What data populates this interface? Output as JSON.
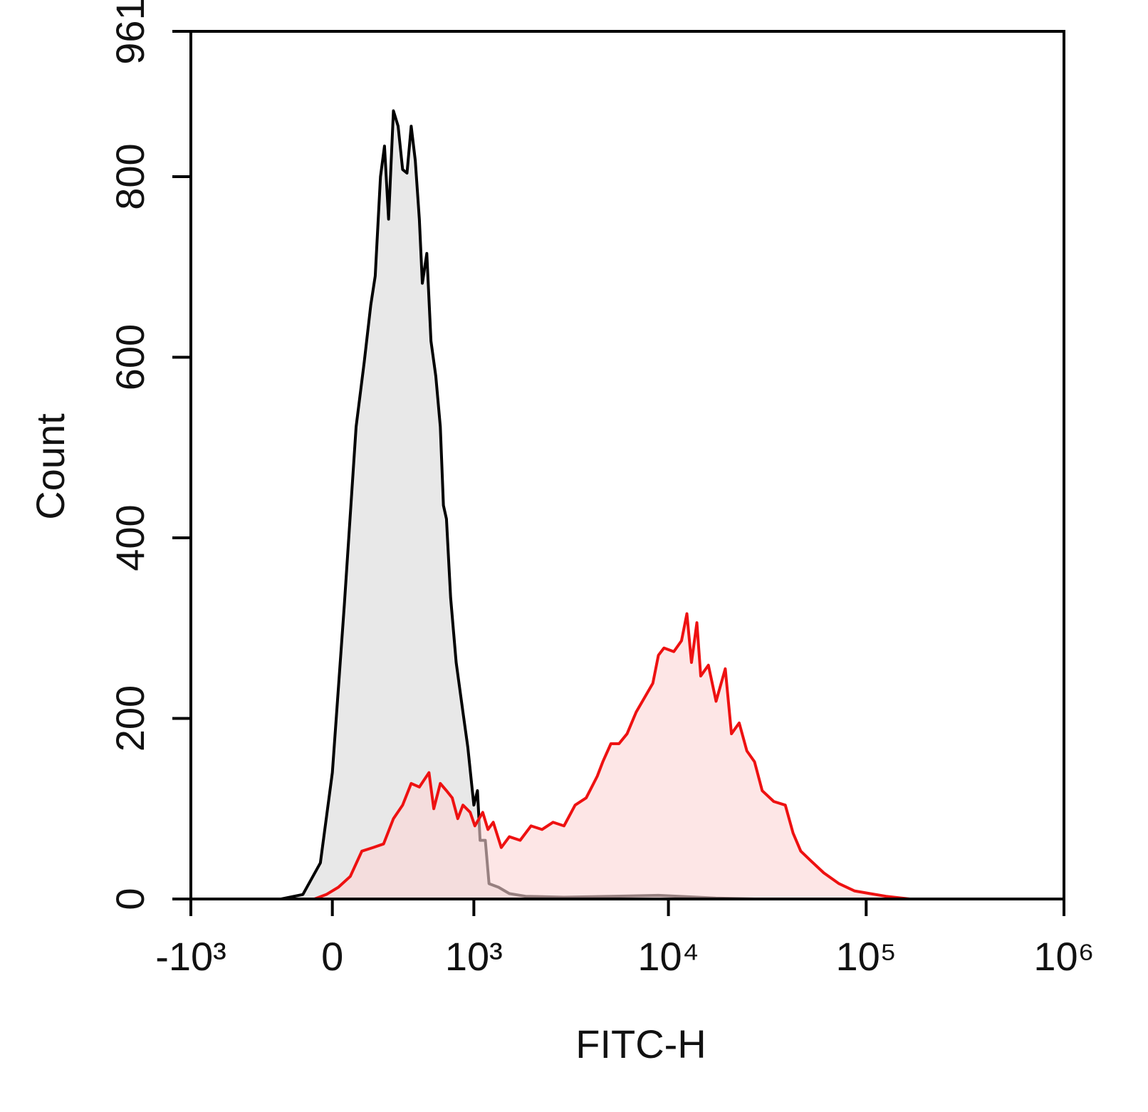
{
  "chart_data": {
    "type": "histogram-overlay",
    "xlabel": "FITC-H",
    "ylabel": "Count",
    "xscale": "biexponential",
    "xlim": [
      -1000,
      1000000
    ],
    "xticks": [
      {
        "value": -1000,
        "label": "-10³"
      },
      0,
      {
        "value": 1000,
        "label": "10³"
      },
      {
        "value": 10000,
        "label": "10⁴"
      },
      {
        "value": 100000,
        "label": "10⁵"
      },
      {
        "value": 1000000,
        "label": "10⁶"
      }
    ],
    "ylim": [
      0,
      961
    ],
    "yticks": [
      0,
      200,
      400,
      600,
      800,
      961
    ],
    "series": [
      {
        "color": "#000000",
        "fill": "#e8e8e8",
        "x": [
          -1000,
          -253,
          -140,
          -56,
          0,
          56,
          112,
          152,
          185,
          208,
          236,
          258,
          281,
          309,
          337,
          365,
          393,
          421,
          449,
          478,
          500,
          534,
          567,
          607,
          646,
          674,
          702,
          742,
          798,
          871,
          927,
          972,
          1000,
          1046,
          1081,
          1153,
          1207,
          1356,
          1544,
          1876,
          2950,
          8900,
          17400,
          27300,
          1000000
        ],
        "values": [
          0,
          0,
          5,
          40,
          140,
          326,
          523,
          595,
          658,
          690,
          800,
          834,
          753,
          873,
          856,
          808,
          804,
          856,
          818,
          753,
          682,
          715,
          618,
          579,
          523,
          436,
          421,
          334,
          262,
          207,
          168,
          128,
          104,
          120,
          65,
          65,
          17,
          13,
          6,
          3,
          2,
          4,
          1,
          0,
          0
        ]
      },
      {
        "color": "#ee1111",
        "fill": "#fbd6d6",
        "x": [
          -1000,
          -84,
          -28,
          28,
          84,
          140,
          197,
          253,
          309,
          365,
          421,
          478,
          551,
          590,
          646,
          702,
          758,
          815,
          871,
          955,
          1013,
          1117,
          1191,
          1271,
          1401,
          1544,
          1758,
          2002,
          2279,
          2595,
          2954,
          3364,
          3830,
          4360,
          4652,
          5112,
          5619,
          6175,
          6866,
          7568,
          8340,
          8900,
          9495,
          10648,
          11645,
          12400,
          13080,
          13930,
          14570,
          15930,
          17420,
          19390,
          20840,
          22800,
          24930,
          27260,
          29800,
          34100,
          39000,
          42700,
          46700,
          53300,
          61000,
          72900,
          87200,
          104400,
          126000,
          166000,
          1000000
        ],
        "values": [
          0,
          0,
          5,
          13,
          25,
          53,
          57,
          61,
          89,
          104,
          128,
          124,
          140,
          100,
          128,
          120,
          112,
          89,
          104,
          96,
          81,
          96,
          77,
          85,
          57,
          69,
          65,
          81,
          77,
          85,
          81,
          104,
          112,
          136,
          152,
          172,
          172,
          183,
          207,
          223,
          239,
          270,
          278,
          274,
          286,
          316,
          262,
          306,
          247,
          259,
          219,
          255,
          183,
          195,
          164,
          152,
          120,
          108,
          104,
          73,
          53,
          41,
          29,
          17,
          9,
          6,
          3,
          0,
          0
        ]
      }
    ]
  }
}
